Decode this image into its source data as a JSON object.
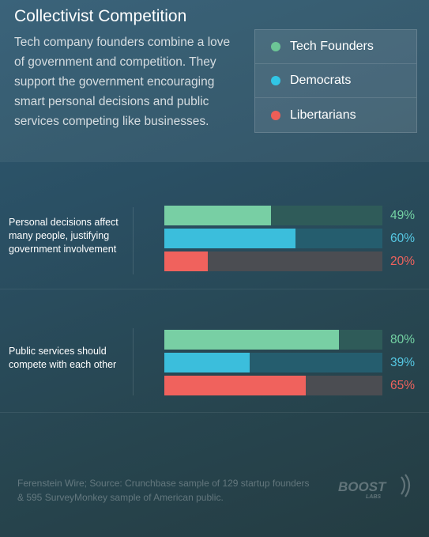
{
  "header": {
    "title": "Collectivist Competition",
    "subtitle": "Tech company founders combine a love of government and competition. They support the government encouraging smart personal decisions and public services competing like businesses."
  },
  "legend": [
    {
      "label": "Tech Founders",
      "color": "#6cc596"
    },
    {
      "label": "Democrats",
      "color": "#31c6e6"
    },
    {
      "label": "Libertarians",
      "color": "#ee5e57"
    }
  ],
  "chart_data": {
    "type": "bar",
    "orientation": "horizontal",
    "categories": [
      "Personal decisions affect many people, justifying government involvement",
      "Public services should compete with each other"
    ],
    "series": [
      {
        "name": "Tech Founders",
        "values": [
          49,
          80
        ],
        "color": "#78cfa4"
      },
      {
        "name": "Democrats",
        "values": [
          60,
          39
        ],
        "color": "#3bbedc"
      },
      {
        "name": "Libertarians",
        "values": [
          20,
          65
        ],
        "color": "#f0625d"
      }
    ],
    "value_labels": [
      [
        "49%",
        "60%",
        "20%"
      ],
      [
        "80%",
        "39%",
        "65%"
      ]
    ],
    "xlim": [
      0,
      100
    ],
    "grid": false,
    "legend_position": "top-right"
  },
  "footer": {
    "source": "Ferenstein Wire; Source: Crunchbase sample of 129 startup founders & 595 SurveyMonkey sample of American public.",
    "logo_text": "BOOST",
    "logo_subtext": "LABS"
  }
}
